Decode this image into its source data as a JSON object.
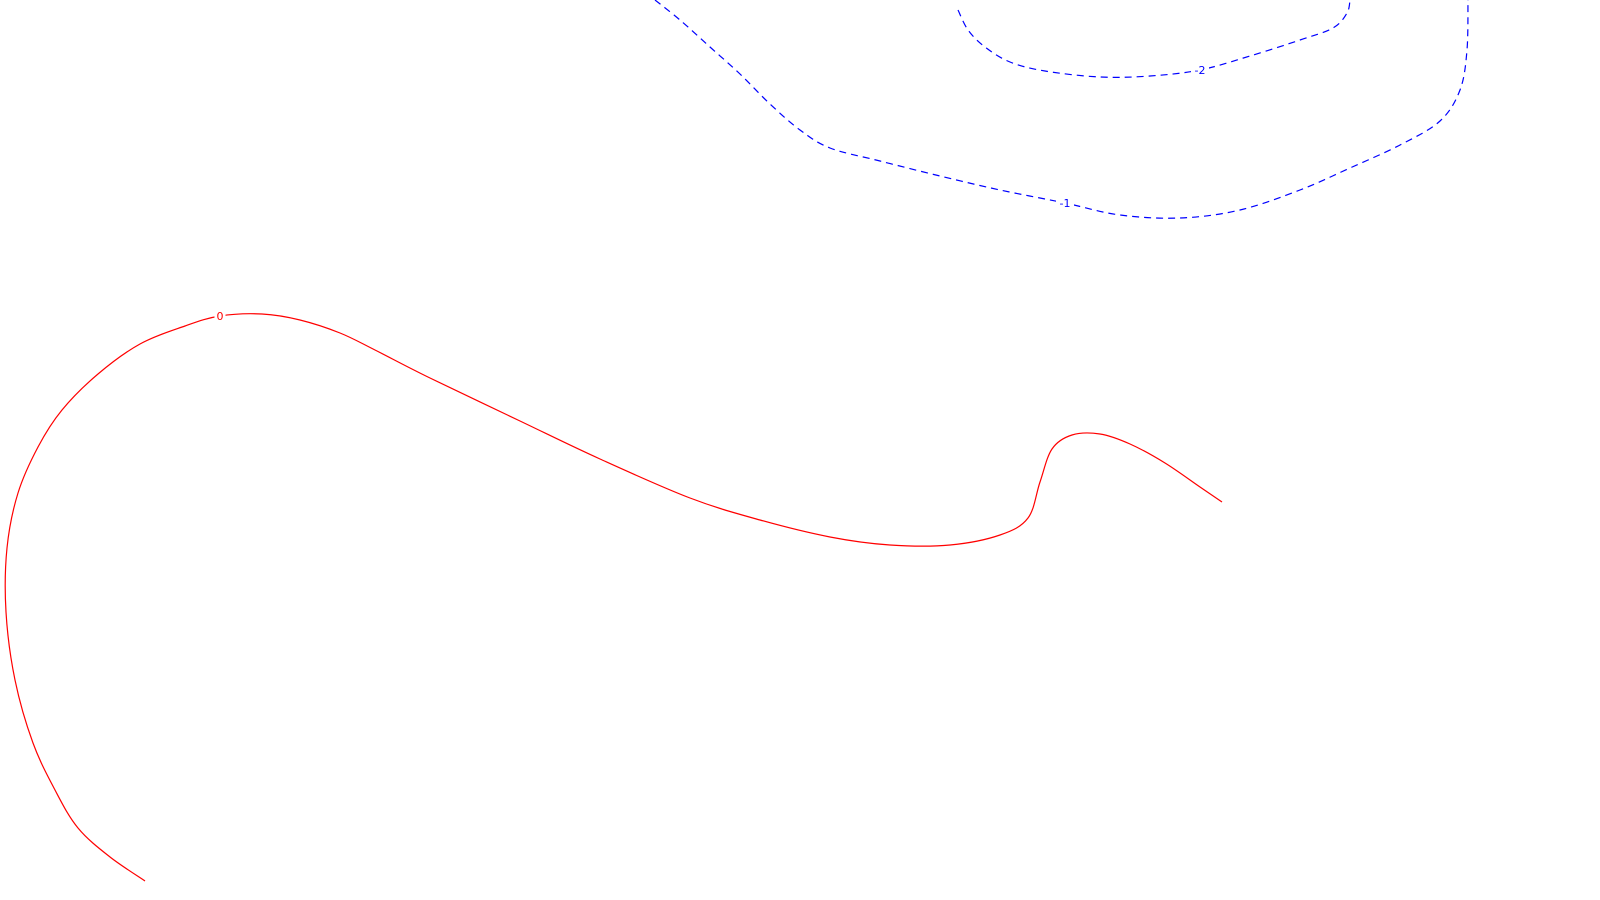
{
  "chart_data": {
    "type": "contour",
    "title": "",
    "xlabel": "",
    "ylabel": "",
    "grid": false,
    "legend": "none",
    "levels": [
      {
        "level": 0,
        "label": "0",
        "color": "#ff0000",
        "style": "solid",
        "label_at": [
          220,
          316
        ],
        "points": [
          [
            145,
            881
          ],
          [
            110,
            857
          ],
          [
            78,
            828
          ],
          [
            55,
            790
          ],
          [
            33,
            743
          ],
          [
            15,
            680
          ],
          [
            6,
            612
          ],
          [
            7,
            548
          ],
          [
            18,
            493
          ],
          [
            38,
            447
          ],
          [
            62,
            410
          ],
          [
            98,
            374
          ],
          [
            140,
            344
          ],
          [
            185,
            326
          ],
          [
            220,
            316
          ],
          [
            262,
            314
          ],
          [
            300,
            320
          ],
          [
            340,
            333
          ],
          [
            375,
            350
          ],
          [
            430,
            378
          ],
          [
            520,
            421
          ],
          [
            600,
            459
          ],
          [
            690,
            498
          ],
          [
            760,
            520
          ],
          [
            830,
            537
          ],
          [
            890,
            545
          ],
          [
            950,
            545
          ],
          [
            1000,
            535
          ],
          [
            1028,
            518
          ],
          [
            1040,
            482
          ],
          [
            1052,
            449
          ],
          [
            1072,
            435
          ],
          [
            1100,
            434
          ],
          [
            1130,
            444
          ],
          [
            1165,
            463
          ],
          [
            1200,
            487
          ],
          [
            1222,
            502
          ]
        ]
      },
      {
        "level": -1,
        "label": "-1",
        "color": "#0000ff",
        "style": "dashed",
        "label_at": [
          1065,
          203
        ],
        "points": [
          [
            655,
            0
          ],
          [
            680,
            20
          ],
          [
            710,
            47
          ],
          [
            740,
            74
          ],
          [
            770,
            104
          ],
          [
            800,
            130
          ],
          [
            830,
            148
          ],
          [
            880,
            161
          ],
          [
            940,
            176
          ],
          [
            1000,
            190
          ],
          [
            1065,
            203
          ],
          [
            1120,
            215
          ],
          [
            1180,
            218
          ],
          [
            1240,
            210
          ],
          [
            1300,
            190
          ],
          [
            1350,
            168
          ],
          [
            1400,
            145
          ],
          [
            1440,
            121
          ],
          [
            1460,
            90
          ],
          [
            1467,
            50
          ],
          [
            1468,
            0
          ]
        ]
      },
      {
        "level": -2,
        "label": "-2",
        "color": "#0000ff",
        "style": "dashed",
        "label_at": [
          1200,
          70
        ],
        "points": [
          [
            958,
            10
          ],
          [
            968,
            30
          ],
          [
            985,
            47
          ],
          [
            1010,
            62
          ],
          [
            1045,
            71
          ],
          [
            1100,
            77
          ],
          [
            1150,
            76
          ],
          [
            1200,
            70
          ],
          [
            1250,
            56
          ],
          [
            1300,
            40
          ],
          [
            1333,
            28
          ],
          [
            1347,
            13
          ],
          [
            1350,
            0
          ]
        ]
      }
    ]
  }
}
